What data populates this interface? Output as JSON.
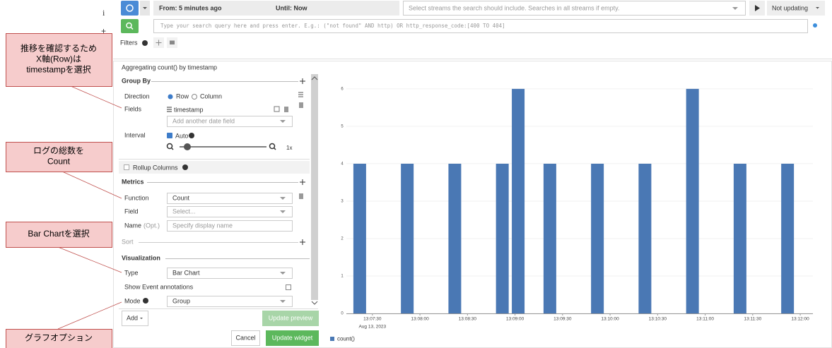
{
  "left_marks": [
    "i",
    "+"
  ],
  "top_bar": {
    "from": "From: 5 minutes ago",
    "until": "Until: Now",
    "streams_placeholder": "Select streams the search should include. Searches in all streams if empty.",
    "refresh": "Not updating"
  },
  "search": {
    "placeholder": "Type your search query here and press enter. E.g.: (\"not found\" AND http) OR http_response_code:[400 TO 404]",
    "filters": "Filters"
  },
  "widget": {
    "description": "Aggregating count() by timestamp",
    "group_by": {
      "title": "Group By",
      "direction_label": "Direction",
      "row": "Row",
      "column": "Column",
      "fields_label": "Fields",
      "field": "timestamp",
      "add_field": "Add another date field",
      "interval_label": "Interval",
      "auto": "Auto",
      "scale": "1x",
      "rollup": "Rollup Columns"
    },
    "metrics": {
      "title": "Metrics",
      "function_label": "Function",
      "function": "Count",
      "field_label": "Field",
      "field": "Select...",
      "name_label": "Name",
      "name_opt": "(Opt.)",
      "name_placeholder": "Specify display name"
    },
    "sort": "Sort",
    "visualization": {
      "title": "Visualization",
      "type_label": "Type",
      "type": "Bar Chart",
      "event_annotations": "Show Event annotations",
      "mode_label": "Mode",
      "mode": "Group"
    },
    "buttons": {
      "add": "Add",
      "update_preview": "Update preview",
      "cancel": "Cancel",
      "update_widget": "Update widget"
    }
  },
  "callouts": [
    {
      "lines": [
        "推移を確認するため",
        "X軸(Row)は",
        "timestampを選択"
      ]
    },
    {
      "lines": [
        "ログの総数を",
        "Count"
      ]
    },
    {
      "lines": [
        "Bar Chartを選択"
      ]
    },
    {
      "lines": [
        "グラフオプション"
      ]
    }
  ],
  "chart_data": {
    "type": "bar",
    "x": [
      "13:07:22",
      "13:07:52",
      "13:08:22",
      "13:08:52",
      "13:09:02",
      "13:09:22",
      "13:09:52",
      "13:10:22",
      "13:10:52",
      "13:11:22",
      "13:11:52"
    ],
    "series": [
      {
        "name": "count()",
        "color": "#4a78b4",
        "values": [
          4,
          4,
          4,
          4,
          6,
          4,
          4,
          4,
          6,
          4,
          4
        ]
      }
    ],
    "xlim": [
      "13:07:10",
      "13:12:08"
    ],
    "xticks": [
      "13:07:30",
      "13:08:00",
      "13:08:30",
      "13:09:00",
      "13:09:30",
      "13:10:00",
      "13:10:30",
      "13:11:00",
      "13:11:30",
      "13:12:00"
    ],
    "x_date_label": "Aug 13, 2023",
    "ylim": [
      0,
      6.3
    ],
    "yticks": [
      0,
      1,
      2,
      3,
      4,
      5,
      6
    ],
    "grid": true
  }
}
